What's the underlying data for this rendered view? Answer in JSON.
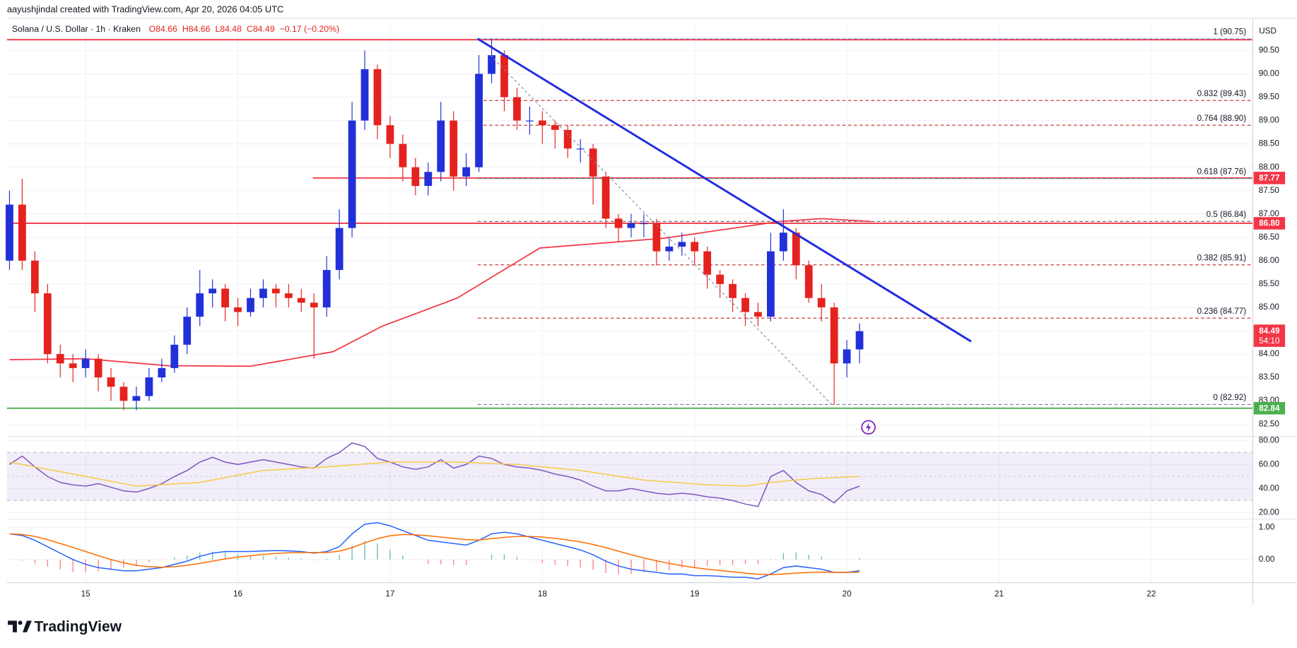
{
  "header": {
    "author": "aayushjindal created with TradingView.com, Apr 20, 2026 04:05 UTC",
    "ohlc": [
      "O84.66",
      "H84.66",
      "L84.48",
      "C84.49",
      "−0.17 (−0.20%)"
    ]
  },
  "footer": {
    "brand": "TradingView"
  },
  "chart_data": [
    {
      "type": "candlestick",
      "title": "Solana / U.S. Dollar · 1h · Kraken",
      "currency": "USD",
      "categories": [
        null,
        null,
        null,
        null,
        null,
        null,
        null,
        null,
        null,
        null,
        null,
        null,
        null,
        null,
        null,
        null,
        null,
        null,
        null,
        null,
        null,
        null,
        null,
        null,
        null,
        null,
        null,
        null,
        null,
        null,
        null,
        null,
        null,
        null,
        null,
        null,
        null,
        null,
        null,
        null,
        null,
        null,
        null,
        null,
        null,
        null,
        null,
        null,
        null,
        null,
        null,
        null,
        null,
        null,
        null,
        null,
        null,
        null,
        null,
        null,
        null,
        null,
        null,
        null,
        null,
        null,
        null,
        null
      ],
      "open": [
        86.0,
        87.2,
        86.0,
        85.3,
        84.0,
        83.8,
        83.7,
        83.9,
        83.5,
        83.3,
        83.0,
        83.1,
        83.5,
        83.7,
        84.2,
        84.8,
        85.3,
        85.4,
        85.0,
        84.9,
        85.2,
        85.4,
        85.3,
        85.2,
        85.1,
        85.0,
        85.8,
        86.7,
        89.0,
        90.1,
        88.9,
        88.5,
        88.0,
        87.6,
        87.9,
        89.0,
        87.8,
        88.0,
        90.0,
        90.4,
        89.5,
        89.0,
        89.0,
        88.9,
        88.8,
        88.4,
        88.4,
        87.8,
        86.9,
        86.7,
        86.8,
        86.8,
        86.2,
        86.3,
        86.4,
        86.2,
        85.7,
        85.5,
        85.2,
        84.9,
        84.8,
        86.2,
        86.6,
        85.9,
        85.2,
        85.0,
        83.8,
        84.1
      ],
      "high": [
        87.5,
        87.75,
        86.2,
        85.5,
        84.2,
        84.0,
        84.1,
        84.0,
        83.7,
        83.4,
        83.3,
        83.7,
        83.9,
        84.4,
        85.0,
        85.8,
        85.6,
        85.5,
        85.2,
        85.4,
        85.6,
        85.5,
        85.5,
        85.4,
        85.3,
        86.1,
        87.1,
        89.4,
        90.5,
        90.2,
        89.1,
        88.7,
        88.2,
        88.1,
        89.4,
        89.2,
        88.3,
        90.4,
        90.75,
        90.5,
        89.7,
        89.3,
        89.2,
        89.0,
        88.9,
        88.6,
        88.5,
        87.9,
        87.0,
        87.0,
        87.0,
        86.9,
        86.5,
        86.6,
        86.5,
        86.3,
        85.8,
        85.6,
        85.3,
        85.1,
        86.6,
        87.1,
        86.7,
        86.0,
        85.5,
        85.1,
        84.3,
        84.66
      ],
      "low": [
        85.8,
        85.8,
        84.9,
        83.8,
        83.5,
        83.4,
        83.5,
        83.2,
        83.0,
        82.8,
        82.8,
        83.0,
        83.4,
        83.6,
        84.0,
        84.6,
        85.0,
        84.7,
        84.6,
        84.8,
        85.0,
        85.0,
        85.0,
        84.9,
        83.9,
        84.8,
        85.6,
        86.5,
        88.8,
        88.6,
        88.2,
        87.7,
        87.4,
        87.4,
        87.7,
        87.5,
        87.6,
        87.9,
        89.8,
        89.2,
        88.8,
        88.7,
        88.5,
        88.4,
        88.2,
        88.1,
        87.2,
        86.7,
        86.4,
        86.5,
        86.5,
        85.9,
        86.0,
        86.1,
        85.9,
        85.4,
        85.2,
        84.9,
        84.6,
        84.6,
        84.7,
        86.0,
        85.6,
        85.1,
        84.7,
        82.92,
        83.5,
        83.8
      ],
      "close": [
        87.2,
        86.0,
        85.3,
        84.0,
        83.8,
        83.7,
        83.9,
        83.5,
        83.3,
        83.0,
        83.1,
        83.5,
        83.7,
        84.2,
        84.8,
        85.3,
        85.4,
        85.0,
        84.9,
        85.2,
        85.4,
        85.3,
        85.2,
        85.1,
        85.0,
        85.8,
        86.7,
        89.0,
        90.1,
        88.9,
        88.5,
        88.0,
        87.6,
        87.9,
        89.0,
        87.8,
        88.0,
        90.0,
        90.4,
        89.5,
        89.0,
        89.0,
        88.9,
        88.8,
        88.4,
        88.4,
        87.8,
        86.9,
        86.7,
        86.8,
        86.8,
        86.2,
        86.3,
        86.4,
        86.2,
        85.7,
        85.5,
        85.2,
        84.9,
        84.8,
        86.2,
        86.6,
        85.9,
        85.2,
        85.0,
        83.8,
        84.1,
        84.49
      ],
      "up_color": "#2130d8",
      "down_color": "#e5221e",
      "xlim": [
        -0.2,
        98
      ],
      "xticks": [
        {
          "value": 6,
          "label": "15"
        },
        {
          "value": 18,
          "label": "16"
        },
        {
          "value": 30,
          "label": "17"
        },
        {
          "value": 42,
          "label": "18"
        },
        {
          "value": 54,
          "label": "19"
        },
        {
          "value": 66,
          "label": "20"
        },
        {
          "value": 78,
          "label": "21"
        },
        {
          "value": 90,
          "label": "22"
        }
      ],
      "ylim": [
        82.29,
        91.05
      ],
      "yticks": [
        {
          "value": 82.5,
          "label": "82.50"
        },
        {
          "value": 83,
          "label": "83.00"
        },
        {
          "value": 83.5,
          "label": "83.50"
        },
        {
          "value": 84,
          "label": "84.00"
        },
        {
          "value": 84.5,
          "label": "84.50"
        },
        {
          "value": 85,
          "label": "85.00"
        },
        {
          "value": 85.5,
          "label": "85.50"
        },
        {
          "value": 86,
          "label": "86.00"
        },
        {
          "value": 86.5,
          "label": "86.50"
        },
        {
          "value": 87,
          "label": "87.00"
        },
        {
          "value": 87.5,
          "label": "87.50"
        },
        {
          "value": 88,
          "label": "88.00"
        },
        {
          "value": 88.5,
          "label": "88.50"
        },
        {
          "value": 89,
          "label": "89.00"
        },
        {
          "value": 89.5,
          "label": "89.50"
        },
        {
          "value": 90,
          "label": "90.00"
        },
        {
          "value": 90.5,
          "label": "90.50"
        }
      ],
      "grid": true,
      "overlays": [
        {
          "name_kind": "ma",
          "color": "#f23645",
          "width": 1.5,
          "x": [
            0,
            6,
            12.5,
            19,
            25.5,
            29.4,
            35.3,
            41.8,
            51.6,
            60.7,
            64,
            67.9
          ],
          "values": [
            83.88,
            83.9,
            83.75,
            83.74,
            84.05,
            84.6,
            85.2,
            86.27,
            86.48,
            86.84,
            86.9,
            86.84
          ]
        },
        {
          "name_kind": "trendline",
          "color": "#1f2be0",
          "width": 2.5,
          "x": [
            36.9,
            75.8
          ],
          "values": [
            90.75,
            84.27
          ]
        },
        {
          "name_kind": "fib-diagonal",
          "color": "#8a8e99",
          "width": 1,
          "dash": "3 3",
          "x": [
            37.9,
            64.8
          ],
          "values": [
            90.4,
            82.92
          ]
        }
      ],
      "levels": [
        {
          "price": 90.73,
          "color": "#f23645",
          "from": -0.2
        },
        {
          "price": 87.77,
          "label": "87.77",
          "color": "#f23645",
          "from": 23.9
        },
        {
          "price": 86.8,
          "label": "86.80",
          "color": "#f23645",
          "from": -0.2
        },
        {
          "price": 82.84,
          "label": "82.84",
          "color": "#4caf50",
          "from": -0.2
        }
      ],
      "fib_from": 36.9,
      "fib": [
        {
          "label": "1 (90.75)",
          "price": 90.75,
          "color": "#5b9cf6"
        },
        {
          "label": "0.832 (89.43)",
          "price": 89.43,
          "color": "#c2272d"
        },
        {
          "label": "0.764 (88.90)",
          "price": 88.9,
          "color": "#c2272d"
        },
        {
          "label": "0.618 (87.76)",
          "price": 87.76,
          "color": "#089981"
        },
        {
          "label": "0.5 (86.84)",
          "price": 86.84,
          "color": "#555a66"
        },
        {
          "label": "0.382 (85.91)",
          "price": 85.91,
          "color": "#c2272d"
        },
        {
          "label": "0.236 (84.77)",
          "price": 84.77,
          "color": "#c2272d"
        },
        {
          "label": "0 (82.92)",
          "price": 82.92,
          "color": "#787b86"
        }
      ],
      "last_price": {
        "value": 84.49,
        "countdown": "54:10",
        "color": "#f23645"
      }
    },
    {
      "type": "line",
      "xlim": [
        -0.2,
        98
      ],
      "ylim": [
        14.5,
        83.4
      ],
      "yticks": [
        {
          "value": 20,
          "label": "20.00"
        },
        {
          "value": 40,
          "label": "40.00"
        },
        {
          "value": 60,
          "label": "60.00"
        },
        {
          "value": 80,
          "label": "80.00"
        }
      ],
      "band": [
        30,
        70
      ],
      "band_color": "#7e57c2",
      "series": [
        {
          "color": "#7e57c2",
          "values": [
            60,
            67,
            58,
            50,
            45,
            43,
            42,
            44,
            41,
            38,
            37,
            40,
            44,
            50,
            55,
            62,
            66,
            62,
            60,
            62,
            64,
            62,
            60,
            58,
            57,
            65,
            70,
            78,
            75,
            65,
            62,
            58,
            56,
            58,
            64,
            57,
            60,
            67,
            65,
            60,
            58,
            57,
            55,
            52,
            50,
            47,
            42,
            38,
            38,
            40,
            38,
            36,
            35,
            36,
            35,
            33,
            32,
            30,
            27,
            25,
            50,
            55,
            45,
            38,
            35,
            28,
            38,
            42
          ]
        },
        {
          "color": "#f7c948",
          "x": [
            0,
            5,
            10,
            15,
            20,
            25,
            30,
            35,
            40,
            45,
            50,
            55,
            58,
            60,
            63,
            67
          ],
          "values": [
            62,
            52,
            42,
            45,
            55,
            58,
            62,
            62,
            60,
            55,
            47,
            43,
            42,
            45,
            48,
            50
          ]
        }
      ]
    },
    {
      "type": "macd",
      "xlim": [
        -0.2,
        98
      ],
      "ylim": [
        -0.72,
        1.26
      ],
      "yticks": [
        {
          "value": 0,
          "label": "0.00"
        },
        {
          "value": 1,
          "label": "1.00"
        }
      ],
      "hist_colors": [
        "#26a69a",
        "#ff5252"
      ],
      "histogram": [
        0,
        -0.03,
        -0.12,
        -0.22,
        -0.3,
        -0.38,
        -0.4,
        -0.37,
        -0.3,
        -0.25,
        -0.17,
        -0.08,
        -0.01,
        0.07,
        0.13,
        0.22,
        0.25,
        0.23,
        0.17,
        0.13,
        0.11,
        0.09,
        0.06,
        0.03,
        -0.02,
        0.03,
        0.14,
        0.43,
        0.58,
        0.5,
        0.31,
        0.12,
        -0.02,
        -0.14,
        -0.15,
        -0.16,
        -0.17,
        -0.01,
        0.15,
        0.16,
        0.08,
        -0.02,
        -0.1,
        -0.16,
        -0.21,
        -0.25,
        -0.32,
        -0.42,
        -0.46,
        -0.45,
        -0.4,
        -0.36,
        -0.33,
        -0.26,
        -0.25,
        -0.2,
        -0.18,
        -0.17,
        -0.13,
        -0.14,
        0.02,
        0.2,
        0.22,
        0.15,
        0.09,
        0,
        0,
        0.04
      ],
      "series": [
        {
          "color": "#2962ff",
          "values": [
            0.8,
            0.75,
            0.6,
            0.4,
            0.2,
            0.0,
            -0.15,
            -0.25,
            -0.3,
            -0.35,
            -0.35,
            -0.3,
            -0.25,
            -0.15,
            -0.05,
            0.1,
            0.2,
            0.25,
            0.25,
            0.25,
            0.27,
            0.28,
            0.27,
            0.25,
            0.2,
            0.25,
            0.4,
            0.8,
            1.1,
            1.15,
            1.05,
            0.9,
            0.75,
            0.6,
            0.55,
            0.5,
            0.45,
            0.6,
            0.8,
            0.85,
            0.8,
            0.7,
            0.6,
            0.5,
            0.4,
            0.3,
            0.15,
            -0.05,
            -0.2,
            -0.3,
            -0.35,
            -0.4,
            -0.45,
            -0.45,
            -0.5,
            -0.5,
            -0.52,
            -0.55,
            -0.55,
            -0.6,
            -0.45,
            -0.25,
            -0.2,
            -0.25,
            -0.3,
            -0.4,
            -0.4,
            -0.35
          ]
        },
        {
          "color": "#ff6d00",
          "values": [
            0.8,
            0.78,
            0.72,
            0.62,
            0.5,
            0.38,
            0.25,
            0.12,
            0.0,
            -0.1,
            -0.18,
            -0.22,
            -0.24,
            -0.22,
            -0.18,
            -0.12,
            -0.05,
            0.02,
            0.08,
            0.12,
            0.16,
            0.19,
            0.21,
            0.22,
            0.22,
            0.22,
            0.26,
            0.37,
            0.52,
            0.65,
            0.74,
            0.78,
            0.77,
            0.74,
            0.7,
            0.66,
            0.62,
            0.61,
            0.65,
            0.69,
            0.72,
            0.72,
            0.7,
            0.66,
            0.61,
            0.55,
            0.47,
            0.37,
            0.26,
            0.15,
            0.05,
            -0.04,
            -0.12,
            -0.19,
            -0.25,
            -0.3,
            -0.34,
            -0.38,
            -0.42,
            -0.46,
            -0.47,
            -0.45,
            -0.42,
            -0.4,
            -0.39,
            -0.4,
            -0.4,
            -0.39
          ]
        }
      ]
    }
  ]
}
